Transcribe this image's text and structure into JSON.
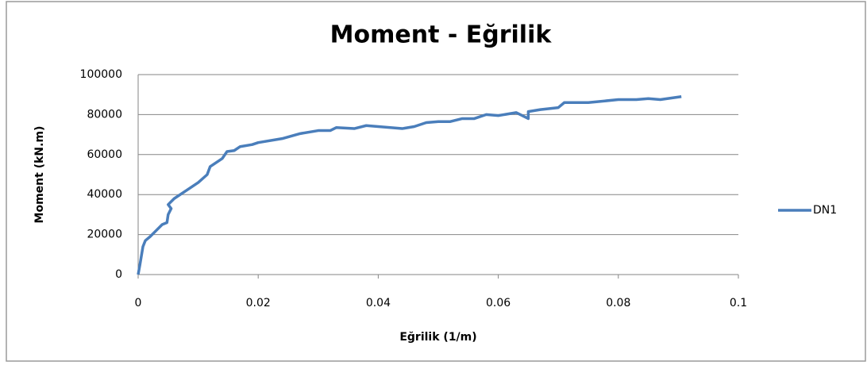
{
  "chart_data": {
    "type": "line",
    "title": "Moment - Eğrilik",
    "x_label": "Eğrilik (1/m)",
    "y_label": "Moment (kN.m)",
    "x": [
      0,
      0.0003,
      0.0008,
      0.0012,
      0.002,
      0.003,
      0.004,
      0.0048,
      0.005,
      0.0055,
      0.005,
      0.006,
      0.008,
      0.01,
      0.0115,
      0.012,
      0.014,
      0.0148,
      0.016,
      0.017,
      0.019,
      0.02,
      0.024,
      0.027,
      0.03,
      0.032,
      0.033,
      0.036,
      0.038,
      0.04,
      0.042,
      0.044,
      0.046,
      0.048,
      0.05,
      0.052,
      0.054,
      0.056,
      0.058,
      0.06,
      0.063,
      0.065,
      0.065,
      0.067,
      0.07,
      0.071,
      0.075,
      0.08,
      0.083,
      0.085,
      0.087,
      0.0905
    ],
    "series": [
      {
        "name": "DN1",
        "color": "#4a7ebb",
        "values": [
          0,
          5000,
          14000,
          17000,
          19000,
          22000,
          25000,
          26000,
          30000,
          33000,
          35000,
          38000,
          42000,
          46000,
          50000,
          54000,
          58000,
          61500,
          62000,
          64000,
          65000,
          66000,
          68000,
          70500,
          72000,
          72000,
          73500,
          73000,
          74500,
          74000,
          73500,
          73000,
          74000,
          76000,
          76500,
          76500,
          78000,
          78000,
          80000,
          79500,
          81000,
          78000,
          81500,
          82500,
          83500,
          86000,
          86000,
          87500,
          87500,
          88000,
          87500,
          89000
        ]
      }
    ],
    "xlim": [
      0,
      0.1
    ],
    "xticks": [
      0,
      0.02,
      0.04,
      0.06,
      0.08,
      0.1
    ],
    "ylim": [
      0,
      100000
    ],
    "yticks": [
      0,
      20000,
      40000,
      60000,
      80000,
      100000
    ],
    "grid": true,
    "legend": "right"
  }
}
